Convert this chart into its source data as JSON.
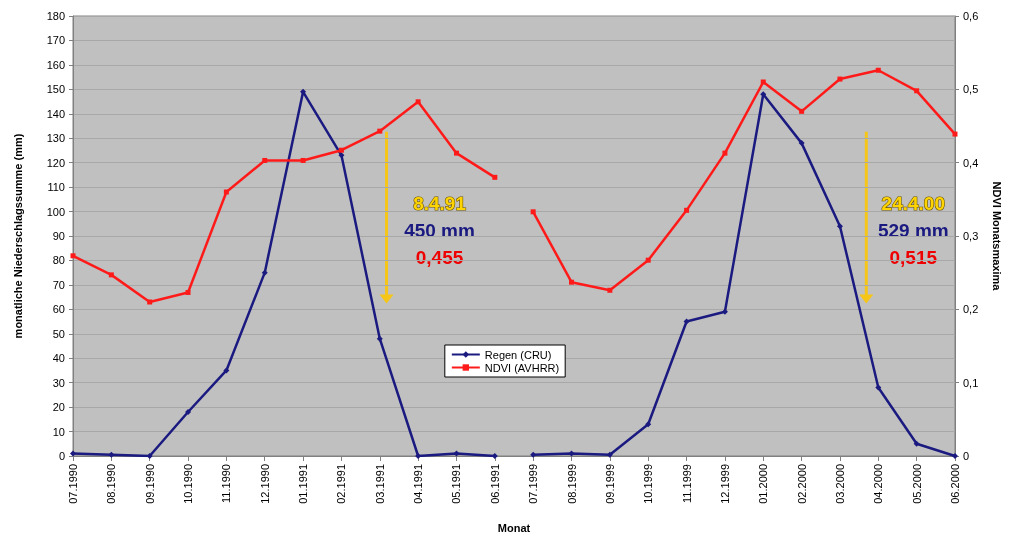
{
  "chart_data": {
    "type": "line",
    "xlabel": "Monat",
    "ylabel": "monatliche Niederschlagssumme (mm)",
    "y2label": "NDVI Monatsmaxima",
    "categories": [
      "07.1990",
      "08.1990",
      "09.1990",
      "10.1990",
      "11.1990",
      "12.1990",
      "01.1991",
      "02.1991",
      "03.1991",
      "04.1991",
      "05.1991",
      "06.1991",
      "07.1999",
      "08.1999",
      "09.1999",
      "10.1999",
      "11.1999",
      "12.1999",
      "01.2000",
      "02.2000",
      "03.2000",
      "04.2000",
      "05.2000",
      "06.2000"
    ],
    "series": [
      {
        "name": "Regen (CRU)",
        "color": "#1a1a80",
        "marker": "diamond",
        "values": [
          1,
          0.5,
          0,
          18,
          35,
          75,
          149,
          123,
          48,
          0,
          1,
          0,
          null,
          null,
          null,
          null,
          null,
          null,
          null,
          null,
          null,
          null,
          null,
          null
        ]
      },
      {
        "name": "NDVI (AVHRR)",
        "color": "#ff1a1a",
        "marker": "square",
        "axis": "y2",
        "values": [
          0.273,
          0.247,
          0.21,
          0.223,
          0.36,
          0.403,
          0.403,
          0.417,
          0.443,
          0.483,
          0.413,
          0.38,
          null,
          null,
          null,
          null,
          null,
          null,
          null,
          null,
          null,
          null,
          null,
          null
        ]
      },
      {
        "color": "#1a1a80",
        "marker": "diamond",
        "values": [
          null,
          null,
          null,
          null,
          null,
          null,
          null,
          null,
          null,
          null,
          null,
          null,
          0.5,
          1,
          0.5,
          13,
          55,
          59,
          148,
          128,
          94,
          28,
          5,
          0
        ]
      },
      {
        "color": "#ff1a1a",
        "marker": "square",
        "axis": "y2",
        "values": [
          null,
          null,
          null,
          null,
          null,
          null,
          null,
          null,
          null,
          null,
          null,
          null,
          0.333,
          0.237,
          0.226,
          0.267,
          0.335,
          0.413,
          0.51,
          0.47,
          0.514,
          0.526,
          0.498,
          0.439
        ]
      }
    ],
    "ylim": [
      0,
      180
    ],
    "yticks": [
      0,
      10,
      20,
      30,
      40,
      50,
      60,
      70,
      80,
      90,
      100,
      110,
      120,
      130,
      140,
      150,
      160,
      170,
      180
    ],
    "y2lim": [
      0,
      0.6
    ],
    "y2ticks": [
      0,
      {
        "value": 0.1,
        "label": "0,1"
      },
      {
        "value": 0.2,
        "label": "0,2"
      },
      {
        "value": 0.3,
        "label": "0,3"
      },
      {
        "value": 0.4,
        "label": "0,4"
      },
      {
        "value": 0.5,
        "label": "0,5"
      },
      {
        "value": 0.6,
        "label": "0,6"
      }
    ],
    "grid": "y",
    "legend": "center",
    "line_style": "solid",
    "annotations": [
      "8.4.91",
      "450 mm",
      "0,455",
      "24.4.00",
      "529 mm",
      "0,515"
    ]
  }
}
